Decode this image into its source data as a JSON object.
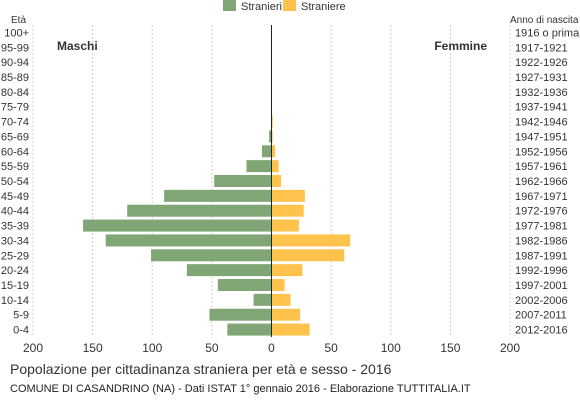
{
  "chart_data": {
    "type": "bar",
    "orientation": "horizontal-population-pyramid",
    "title": "Popolazione per cittadinanza straniera per età e sesso - 2016",
    "source_text": "COMUNE DI CASANDRINO (NA) - Dati ISTAT 1° gennaio 2016 - Elaborazione TUTTITALIA.IT",
    "left_axis_label": "Età",
    "right_axis_label": "Anno di nascita",
    "left_side_label": "Maschi",
    "right_side_label": "Femmine",
    "legend": {
      "placement": "top-center",
      "items": [
        {
          "label": "Stranieri",
          "color": "#7fa674"
        },
        {
          "label": "Straniere",
          "color": "#ffc34d"
        }
      ]
    },
    "xlim": [
      -200,
      200
    ],
    "x_ticks": [
      {
        "value": -200,
        "label": "200"
      },
      {
        "value": -150,
        "label": "150"
      },
      {
        "value": -100,
        "label": "100"
      },
      {
        "value": -50,
        "label": "50"
      },
      {
        "value": 0,
        "label": "0"
      },
      {
        "value": 50,
        "label": "50"
      },
      {
        "value": 100,
        "label": "100"
      },
      {
        "value": 150,
        "label": "150"
      },
      {
        "value": 200,
        "label": "200"
      }
    ],
    "grid": true,
    "age_groups": [
      "100+",
      "95-99",
      "90-94",
      "85-89",
      "80-84",
      "75-79",
      "70-74",
      "65-69",
      "60-64",
      "55-59",
      "50-54",
      "45-49",
      "40-44",
      "35-39",
      "30-34",
      "25-29",
      "20-24",
      "15-19",
      "10-14",
      "5-9",
      "0-4"
    ],
    "birth_years": [
      "1916 o prima",
      "1917-1921",
      "1922-1926",
      "1927-1931",
      "1932-1936",
      "1937-1941",
      "1942-1946",
      "1947-1951",
      "1952-1956",
      "1957-1961",
      "1962-1966",
      "1967-1971",
      "1972-1976",
      "1977-1981",
      "1982-1986",
      "1987-1991",
      "1992-1996",
      "1997-2001",
      "2002-2006",
      "2007-2011",
      "2012-2016"
    ],
    "series": [
      {
        "name": "Stranieri",
        "color": "#7fa674",
        "values": [
          0,
          0,
          0,
          0,
          0,
          0,
          0,
          2,
          8,
          21,
          48,
          90,
          121,
          158,
          139,
          101,
          71,
          45,
          15,
          52,
          37
        ]
      },
      {
        "name": "Straniere",
        "color": "#ffc34d",
        "values": [
          0,
          0,
          0,
          0,
          0,
          0,
          1,
          1,
          3,
          6,
          8,
          28,
          27,
          23,
          66,
          61,
          26,
          11,
          16,
          24,
          32
        ]
      }
    ]
  }
}
